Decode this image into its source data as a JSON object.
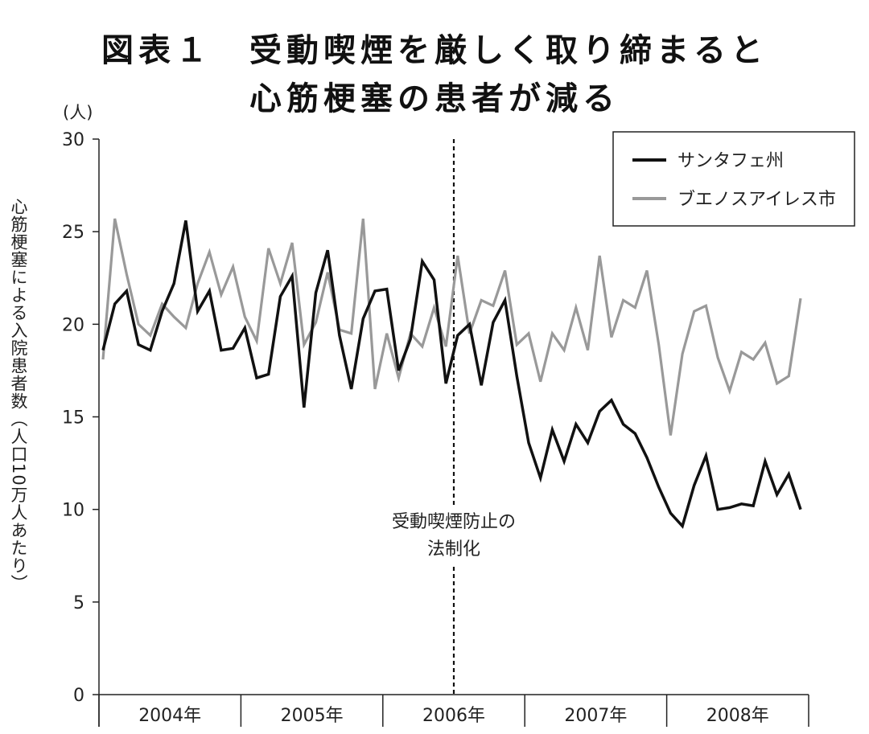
{
  "title_line1": "図表１　受動喫煙を厳しく取り締まると",
  "title_line2": "心筋梗塞の患者が減る",
  "chart_data": {
    "type": "line",
    "ylabel": "心筋梗塞による入院患者数（人口10万人あたり）",
    "yunit": "(人)",
    "ylim": [
      0,
      30
    ],
    "yticks": [
      0,
      5,
      10,
      15,
      20,
      25,
      30
    ],
    "x_start_year": 2004,
    "points_per_year": 12,
    "year_labels": [
      "2004年",
      "2005年",
      "2006年",
      "2007年",
      "2008年"
    ],
    "annotation": {
      "text": [
        "受動喫煙防止の",
        "法制化"
      ],
      "x": 2006.5
    },
    "legend_position": "top-right",
    "colors": {
      "santa_fe": "#111111",
      "buenos_aires": "#999999"
    },
    "series": [
      {
        "name": "サンタフェ州",
        "values": [
          18.6,
          21.1,
          21.8,
          18.9,
          18.6,
          20.7,
          22.2,
          25.6,
          20.7,
          21.8,
          18.6,
          18.7,
          19.8,
          17.1,
          17.3,
          21.5,
          22.6,
          15.5,
          21.7,
          24.0,
          19.4,
          16.5,
          20.3,
          21.8,
          21.9,
          17.5,
          19.2,
          23.4,
          22.4,
          16.8,
          19.4,
          20.0,
          16.7,
          20.1,
          21.3,
          17.2,
          13.6,
          11.7,
          14.3,
          12.6,
          14.6,
          13.6,
          15.3,
          15.9,
          14.6,
          14.1,
          12.8,
          11.2,
          9.8,
          9.1,
          11.3,
          12.9,
          10.0,
          10.1,
          10.3,
          10.2,
          12.6,
          10.8,
          11.9,
          10.0
        ]
      },
      {
        "name": "ブエノスアイレス市",
        "values": [
          18.1,
          25.7,
          22.7,
          20.0,
          19.4,
          21.1,
          20.4,
          19.8,
          22.2,
          23.9,
          21.6,
          23.1,
          20.4,
          19.1,
          24.1,
          22.2,
          24.4,
          18.9,
          20.1,
          22.8,
          19.7,
          19.5,
          25.7,
          16.5,
          19.5,
          17.1,
          19.5,
          18.8,
          20.9,
          18.8,
          23.7,
          19.5,
          21.3,
          21.0,
          22.9,
          18.9,
          19.5,
          16.9,
          19.5,
          18.6,
          20.9,
          18.6,
          23.7,
          19.3,
          21.3,
          20.9,
          22.9,
          18.9,
          14.0,
          18.4,
          20.7,
          21.0,
          18.2,
          16.4,
          18.5,
          18.1,
          19.0,
          16.8,
          17.2,
          21.4
        ]
      }
    ]
  }
}
